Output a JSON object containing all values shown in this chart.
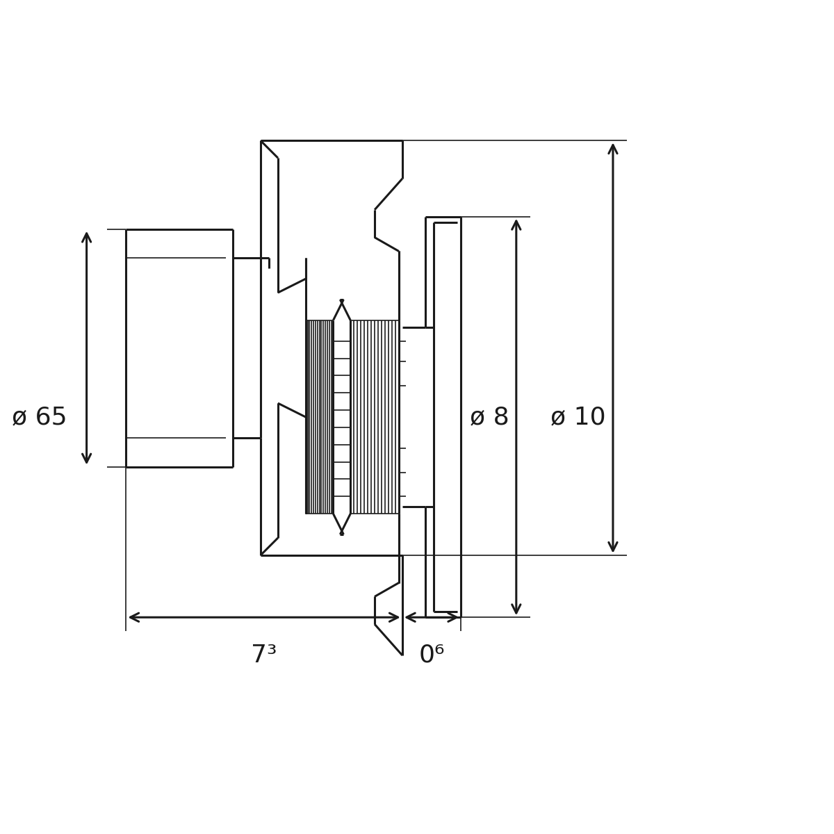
{
  "bg_color": "#ffffff",
  "line_color": "#1a1a1a",
  "lw": 2.2,
  "tlw": 1.2,
  "fig_size": [
    12,
    12
  ],
  "dpi": 100,
  "annotations": [
    {
      "text": "ø 65",
      "fontsize": 26
    },
    {
      "text": "ø 8",
      "fontsize": 26
    },
    {
      "text": "ø 10",
      "fontsize": 26
    },
    {
      "text": "7³",
      "fontsize": 26
    },
    {
      "text": "0⁶",
      "fontsize": 26
    }
  ]
}
